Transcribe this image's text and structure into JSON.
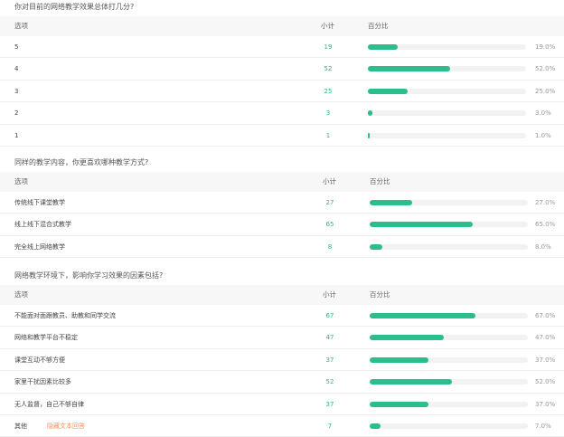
{
  "accent_color": "#2bbd8b",
  "header": {
    "option": "选项",
    "count": "小计",
    "percent": "百分比"
  },
  "questions": [
    {
      "title": "你对目前的网络教学效果总体打几分?",
      "rows": [
        {
          "option": "5",
          "count": "19",
          "percent": 19,
          "percent_label": "19.0%"
        },
        {
          "option": "4",
          "count": "52",
          "percent": 52,
          "percent_label": "52.0%"
        },
        {
          "option": "3",
          "count": "25",
          "percent": 25,
          "percent_label": "25.0%"
        },
        {
          "option": "2",
          "count": "3",
          "percent": 3,
          "percent_label": "3.0%"
        },
        {
          "option": "1",
          "count": "1",
          "percent": 1,
          "percent_label": "1.0%"
        }
      ]
    },
    {
      "title": "同样的教学内容，你更喜欢哪种教学方式?",
      "rows": [
        {
          "option": "传统线下课堂教学",
          "count": "27",
          "percent": 27,
          "percent_label": "27.0%"
        },
        {
          "option": "线上线下混合式教学",
          "count": "65",
          "percent": 65,
          "percent_label": "65.0%"
        },
        {
          "option": "完全线上网络教学",
          "count": "8",
          "percent": 8,
          "percent_label": "8.0%"
        }
      ]
    },
    {
      "title": "网络教学环境下，影响你学习效果的因素包括?",
      "rows": [
        {
          "option": "不能面对面跟教员、助教和同学交流",
          "count": "67",
          "percent": 67,
          "percent_label": "67.0%"
        },
        {
          "option": "网络和教学平台不稳定",
          "count": "47",
          "percent": 47,
          "percent_label": "47.0%"
        },
        {
          "option": "课堂互动不够方便",
          "count": "37",
          "percent": 37,
          "percent_label": "37.0%"
        },
        {
          "option": "家里干扰因素比较多",
          "count": "52",
          "percent": 52,
          "percent_label": "52.0%"
        },
        {
          "option": "无人监督，自己不够自律",
          "count": "37",
          "percent": 37,
          "percent_label": "37.0%"
        },
        {
          "option": "其他",
          "link": "隐藏文本回答",
          "count": "7",
          "percent": 7,
          "percent_label": "7.0%"
        }
      ]
    }
  ]
}
